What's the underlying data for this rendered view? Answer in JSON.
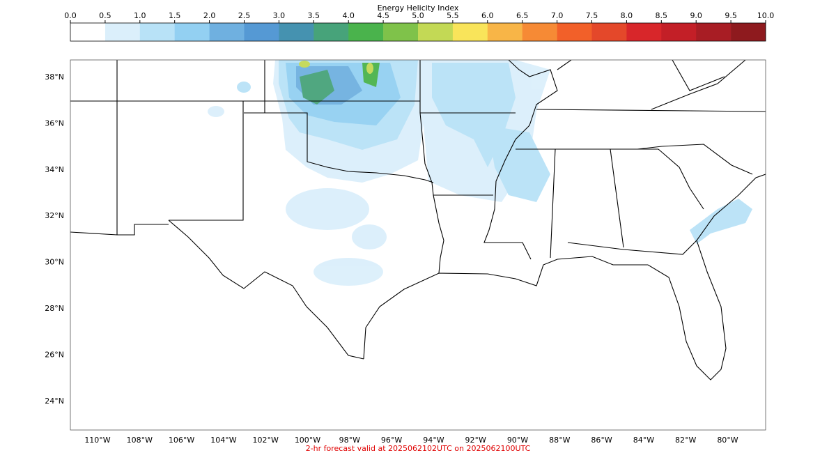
{
  "colorbar": {
    "title": "Energy Helicity Index",
    "ticks": [
      {
        "value": 0,
        "label": "0.0"
      },
      0.5,
      {
        "value": 1,
        "label": "1.0"
      },
      1.5,
      {
        "value": 2,
        "label": "2.0"
      },
      2.5,
      {
        "value": 3,
        "label": "3.0"
      },
      3.5,
      {
        "value": 4,
        "label": "4.0"
      },
      4.5,
      {
        "value": 5,
        "label": "5.0"
      },
      5.5,
      {
        "value": 6,
        "label": "6.0"
      },
      6.5,
      {
        "value": 7,
        "label": "7.0"
      },
      7.5,
      {
        "value": 8,
        "label": "8.0"
      },
      8.5,
      {
        "value": 9,
        "label": "9.0"
      },
      9.5,
      {
        "value": 10,
        "label": "10.0"
      }
    ],
    "colors": [
      "#ffffff",
      "#dbeffb",
      "#b8e2f7",
      "#93d0f2",
      "#6fb0e0",
      "#5599d4",
      "#4592b0",
      "#47a37a",
      "#4ab34c",
      "#7fc24a",
      "#c3d955",
      "#f9e45a",
      "#f8b547",
      "#f68a35",
      "#f26029",
      "#e4482a",
      "#d8262a",
      "#c31f27",
      "#a81d24",
      "#8e1a1e"
    ]
  },
  "map": {
    "lat_labels": [
      "38°N",
      "36°N",
      "34°N",
      "32°N",
      "30°N",
      "28°N",
      "26°N",
      "24°N"
    ],
    "lon_labels": [
      "110°W",
      "108°W",
      "106°W",
      "104°W",
      "102°W",
      "100°W",
      "98°W",
      "96°W",
      "94°W",
      "92°W",
      "90°W",
      "88°W",
      "86°W",
      "84°W",
      "82°W",
      "80°W"
    ]
  },
  "footer": "2-hr forecast valid at 2025062102UTC on 2025062100UTC"
}
